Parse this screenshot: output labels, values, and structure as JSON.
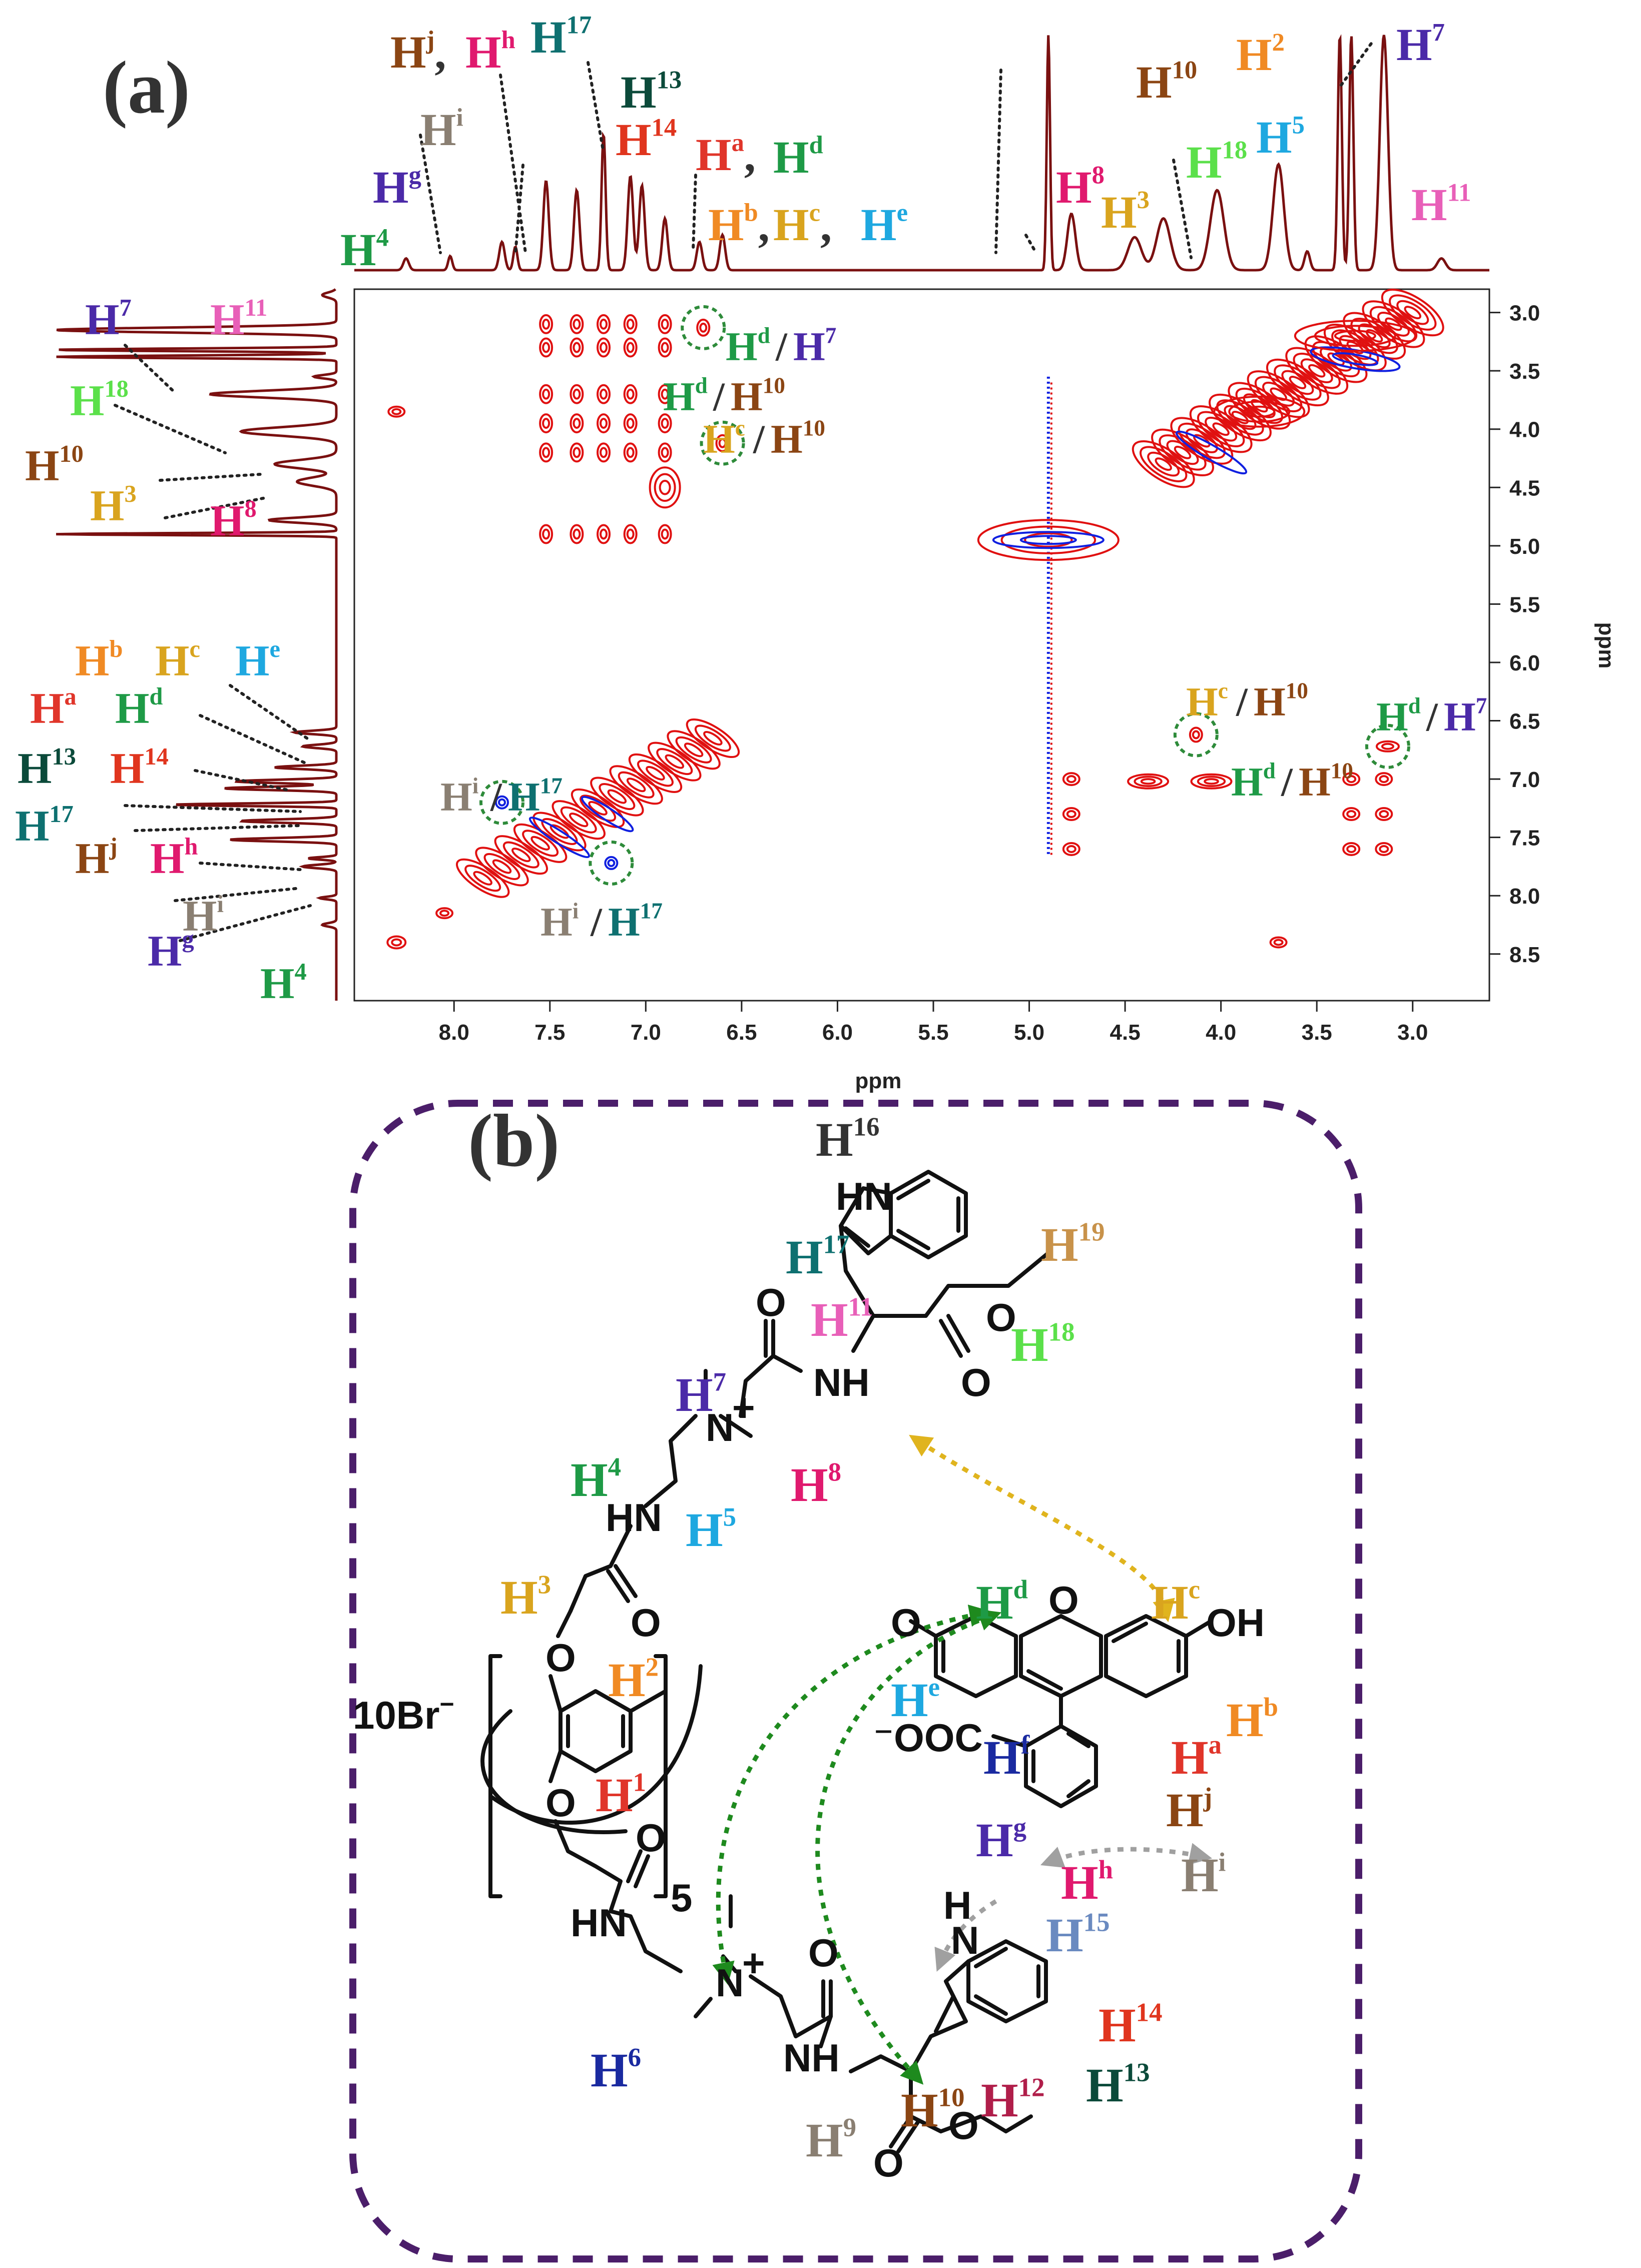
{
  "panel_a": {
    "letter": "(a)",
    "x_axis_label": "ppm",
    "y_axis_label": "ppm",
    "x_ticks": [
      "8.0",
      "7.5",
      "7.0",
      "6.5",
      "6.0",
      "5.5",
      "5.0",
      "4.5",
      "4.0",
      "3.5",
      "3.0"
    ],
    "y_ticks": [
      "3.0",
      "3.5",
      "4.0",
      "4.5",
      "5.0",
      "5.5",
      "6.0",
      "6.5",
      "7.0",
      "7.5",
      "8.0",
      "8.5"
    ],
    "top_labels": [
      {
        "base": "H",
        "sup": "j",
        "color": "#8B4513",
        "tail": ","
      },
      {
        "base": "H",
        "sup": "h",
        "color": "#E0196E",
        "tail": ""
      },
      {
        "base": "H",
        "sup": "17",
        "color": "#0E7070",
        "tail": ""
      },
      {
        "base": "H",
        "sup": "13",
        "color": "#0B4A3A",
        "tail": ""
      },
      {
        "base": "H",
        "sup": "i",
        "color": "#8A7F72",
        "tail": ""
      },
      {
        "base": "H",
        "sup": "14",
        "color": "#E0351E",
        "tail": ""
      },
      {
        "base": "H",
        "sup": "a",
        "color": "#E0352A",
        "tail": ","
      },
      {
        "base": "H",
        "sup": "d",
        "color": "#1E9A46",
        "tail": ""
      },
      {
        "base": "H",
        "sup": "g",
        "color": "#4B2AA8",
        "tail": ""
      },
      {
        "base": "H",
        "sup": "b",
        "color": "#F08A24",
        "tail": ","
      },
      {
        "base": "H",
        "sup": "c",
        "color": "#D9A41E",
        "tail": ","
      },
      {
        "base": "H",
        "sup": "e",
        "color": "#1EA8E0",
        "tail": ""
      },
      {
        "base": "H",
        "sup": "4",
        "color": "#1E9A46",
        "tail": ""
      },
      {
        "base": "H",
        "sup": "8",
        "color": "#E0196E",
        "tail": ""
      },
      {
        "base": "H",
        "sup": "10",
        "color": "#8B4513",
        "tail": ""
      },
      {
        "base": "H",
        "sup": "3",
        "color": "#D9A41E",
        "tail": ""
      },
      {
        "base": "H",
        "sup": "2",
        "color": "#F08A24",
        "tail": ""
      },
      {
        "base": "H",
        "sup": "5",
        "color": "#1EA8E0",
        "tail": ""
      },
      {
        "base": "H",
        "sup": "18",
        "color": "#5BE04A",
        "tail": ""
      },
      {
        "base": "H",
        "sup": "7",
        "color": "#4B2AA8",
        "tail": ""
      },
      {
        "base": "H",
        "sup": "11",
        "color": "#E85FB8",
        "tail": ""
      }
    ],
    "left_labels": [
      {
        "base": "H",
        "sup": "7",
        "color": "#4B2AA8"
      },
      {
        "base": "H",
        "sup": "11",
        "color": "#E85FB8"
      },
      {
        "base": "H",
        "sup": "18",
        "color": "#5BE04A"
      },
      {
        "base": "H",
        "sup": "10",
        "color": "#8B4513"
      },
      {
        "base": "H",
        "sup": "3",
        "color": "#D9A41E"
      },
      {
        "base": "H",
        "sup": "8",
        "color": "#E0196E"
      },
      {
        "base": "H",
        "sup": "b",
        "color": "#F08A24"
      },
      {
        "base": "H",
        "sup": "c",
        "color": "#D9A41E"
      },
      {
        "base": "H",
        "sup": "e",
        "color": "#1EA8E0"
      },
      {
        "base": "H",
        "sup": "a",
        "color": "#E0352A"
      },
      {
        "base": "H",
        "sup": "d",
        "color": "#1E9A46"
      },
      {
        "base": "H",
        "sup": "13",
        "color": "#0B4A3A"
      },
      {
        "base": "H",
        "sup": "14",
        "color": "#E0351E"
      },
      {
        "base": "H",
        "sup": "17",
        "color": "#0E7070"
      },
      {
        "base": "H",
        "sup": "j",
        "color": "#8B4513"
      },
      {
        "base": "H",
        "sup": "h",
        "color": "#E0196E"
      },
      {
        "base": "H",
        "sup": "i",
        "color": "#8A7F72"
      },
      {
        "base": "H",
        "sup": "g",
        "color": "#4B2AA8"
      },
      {
        "base": "H",
        "sup": "4",
        "color": "#1E9A46"
      }
    ],
    "cross_peak_labels": [
      {
        "a": {
          "sup": "d",
          "color": "#1E9A46"
        },
        "b": {
          "sup": "7",
          "color": "#4B2AA8"
        }
      },
      {
        "a": {
          "sup": "d",
          "color": "#1E9A46"
        },
        "b": {
          "sup": "10",
          "color": "#8B4513"
        }
      },
      {
        "a": {
          "sup": "c",
          "color": "#D9A41E"
        },
        "b": {
          "sup": "10",
          "color": "#8B4513"
        }
      },
      {
        "a": {
          "sup": "c",
          "color": "#D9A41E"
        },
        "b": {
          "sup": "10",
          "color": "#8B4513"
        }
      },
      {
        "a": {
          "sup": "d",
          "color": "#1E9A46"
        },
        "b": {
          "sup": "7",
          "color": "#4B2AA8"
        }
      },
      {
        "a": {
          "sup": "d",
          "color": "#1E9A46"
        },
        "b": {
          "sup": "10",
          "color": "#8B4513"
        }
      },
      {
        "a": {
          "sup": "i",
          "color": "#8A7F72"
        },
        "b": {
          "sup": "17",
          "color": "#0E7070"
        }
      },
      {
        "a": {
          "sup": "i",
          "color": "#8A7F72"
        },
        "b": {
          "sup": "17",
          "color": "#0E7070"
        }
      }
    ],
    "colors": {
      "spectrum": "#7A1010",
      "positive": "#E01010",
      "negative": "#1020E0",
      "circle": "#2E8B3A",
      "dotline": "#222222"
    }
  },
  "panel_b": {
    "letter": "(b)",
    "counterion": "10Br",
    "counterion_charge": "−",
    "repeat_index": "5",
    "atoms": {
      "hn": "HN",
      "nh": "NH",
      "o": "O",
      "oh": "OH",
      "n": "N",
      "plus": "+",
      "ooc": "⁻OOC",
      "h": "H",
      "hn_bottom": "HN"
    },
    "proton_labels": [
      {
        "base": "H",
        "sup": "16",
        "color": "#333333"
      },
      {
        "base": "H",
        "sup": "17",
        "color": "#0E7070"
      },
      {
        "base": "H",
        "sup": "19",
        "color": "#C8924A"
      },
      {
        "base": "H",
        "sup": "11",
        "color": "#E85FB8"
      },
      {
        "base": "H",
        "sup": "18",
        "color": "#5BE04A"
      },
      {
        "base": "H",
        "sup": "7",
        "color": "#4B2AA8"
      },
      {
        "base": "H",
        "sup": "8",
        "color": "#E0196E"
      },
      {
        "base": "H",
        "sup": "4",
        "color": "#1E9A46"
      },
      {
        "base": "H",
        "sup": "5",
        "color": "#1EA8E0"
      },
      {
        "base": "H",
        "sup": "3",
        "color": "#D9A41E"
      },
      {
        "base": "H",
        "sup": "2",
        "color": "#F08A24"
      },
      {
        "base": "H",
        "sup": "1",
        "color": "#E0352A"
      },
      {
        "base": "H",
        "sup": "d",
        "color": "#1E9A46"
      },
      {
        "base": "H",
        "sup": "c",
        "color": "#D9A41E"
      },
      {
        "base": "H",
        "sup": "e",
        "color": "#1EA8E0"
      },
      {
        "base": "H",
        "sup": "f",
        "color": "#1A2AA0"
      },
      {
        "base": "H",
        "sup": "b",
        "color": "#F08A24"
      },
      {
        "base": "H",
        "sup": "a",
        "color": "#E0352A"
      },
      {
        "base": "H",
        "sup": "j",
        "color": "#8B4513"
      },
      {
        "base": "H",
        "sup": "g",
        "color": "#4B2AA8"
      },
      {
        "base": "H",
        "sup": "h",
        "color": "#E0196E"
      },
      {
        "base": "H",
        "sup": "i",
        "color": "#8A7F72"
      },
      {
        "base": "H",
        "sup": "15",
        "color": "#6A8AC0"
      },
      {
        "base": "H",
        "sup": "14",
        "color": "#E0351E"
      },
      {
        "base": "H",
        "sup": "13",
        "color": "#0B4A3A"
      },
      {
        "base": "H",
        "sup": "12",
        "color": "#B01E4A"
      },
      {
        "base": "H",
        "sup": "10",
        "color": "#8B4513"
      },
      {
        "base": "H",
        "sup": "9",
        "color": "#8A7F72"
      },
      {
        "base": "H",
        "sup": "6",
        "color": "#1A2AA0"
      }
    ],
    "colors": {
      "frame": "#4B1E6A",
      "arrow_green": "#1E8A1E",
      "arrow_yellow": "#E0B41E",
      "arrow_grey": "#A0A0A0"
    }
  }
}
